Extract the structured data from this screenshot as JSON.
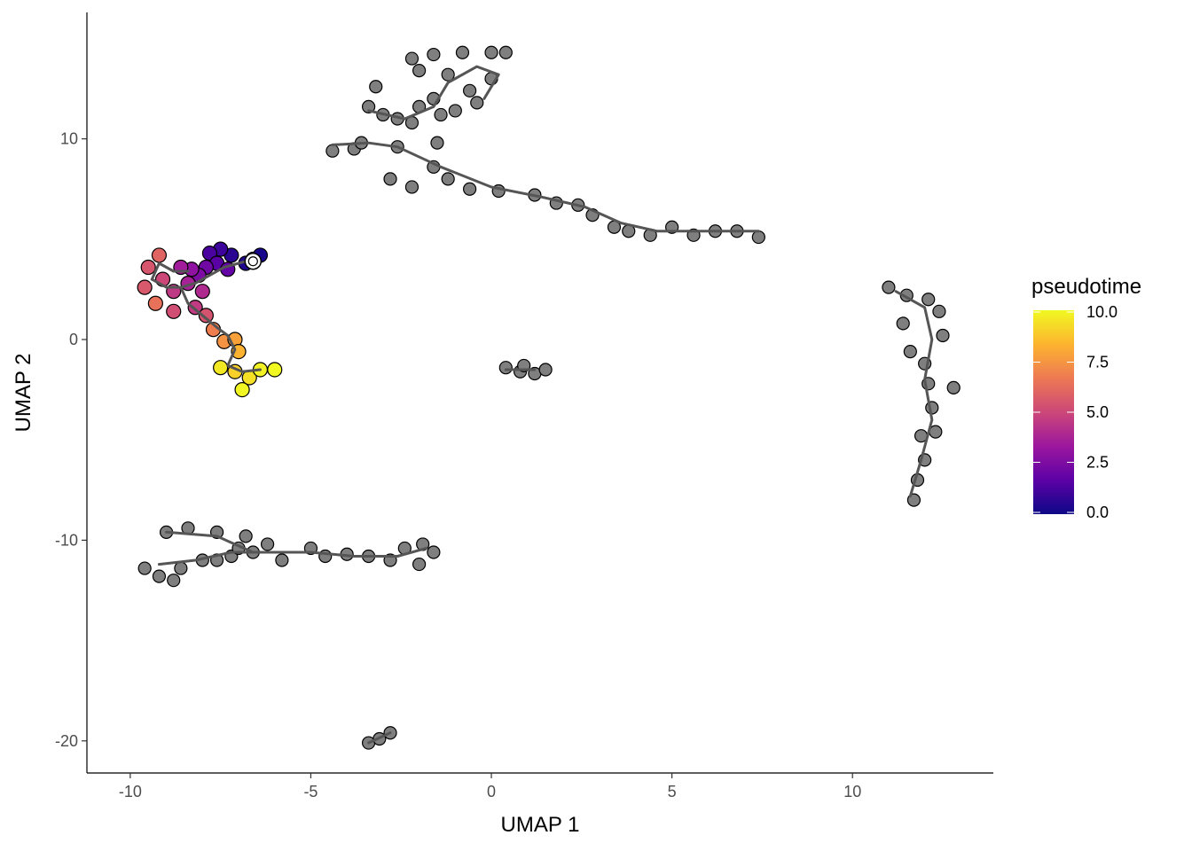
{
  "chart_data": {
    "type": "scatter",
    "title": "",
    "xlabel": "UMAP 1",
    "ylabel": "UMAP 2",
    "xlim": [
      -11.2,
      13.9
    ],
    "ylim": [
      -21.6,
      16.3
    ],
    "x_ticks": [
      -10,
      -5,
      0,
      5,
      10
    ],
    "x_tick_labels": [
      "-10",
      "-5",
      "0",
      "5",
      "10"
    ],
    "y_ticks": [
      -20,
      -10,
      0,
      10
    ],
    "y_tick_labels": [
      "-20",
      "-10",
      "0",
      "10"
    ],
    "grid": false,
    "legend": {
      "title": "pseudotime",
      "placement": "right",
      "colormap": "plasma",
      "range": [
        0,
        10
      ],
      "ticks": [
        0,
        2.5,
        5,
        7.5,
        10
      ],
      "tick_labels": [
        "0.0",
        "2.5",
        "5.0",
        "7.5",
        "10.0"
      ],
      "colors": [
        "#0d0887",
        "#5c01a6",
        "#9c179e",
        "#cc4778",
        "#ed7953",
        "#fdb42f",
        "#f0f921"
      ]
    },
    "colors": {
      "unassigned_points": "#7f7f7f",
      "point_outline": "#000000",
      "trajectory": "#555555",
      "root_marker": "#ffffff"
    },
    "colored_cluster": [
      {
        "x": -6.6,
        "y": 4.0,
        "pseudotime": 0.0
      },
      {
        "x": -6.4,
        "y": 4.2,
        "pseudotime": 0.2
      },
      {
        "x": -6.8,
        "y": 3.8,
        "pseudotime": 0.4
      },
      {
        "x": -7.2,
        "y": 4.2,
        "pseudotime": 0.6
      },
      {
        "x": -7.5,
        "y": 4.5,
        "pseudotime": 1.0
      },
      {
        "x": -7.8,
        "y": 4.3,
        "pseudotime": 1.3
      },
      {
        "x": -7.6,
        "y": 3.8,
        "pseudotime": 1.6
      },
      {
        "x": -7.3,
        "y": 3.5,
        "pseudotime": 1.9
      },
      {
        "x": -7.9,
        "y": 3.6,
        "pseudotime": 2.2
      },
      {
        "x": -8.1,
        "y": 3.2,
        "pseudotime": 2.5
      },
      {
        "x": -8.3,
        "y": 3.5,
        "pseudotime": 3.0
      },
      {
        "x": -8.6,
        "y": 3.6,
        "pseudotime": 3.5
      },
      {
        "x": -8.4,
        "y": 2.8,
        "pseudotime": 3.7
      },
      {
        "x": -8.0,
        "y": 2.4,
        "pseudotime": 4.0
      },
      {
        "x": -8.8,
        "y": 2.4,
        "pseudotime": 4.5
      },
      {
        "x": -9.1,
        "y": 3.0,
        "pseudotime": 5.0
      },
      {
        "x": -9.5,
        "y": 3.6,
        "pseudotime": 5.5
      },
      {
        "x": -9.2,
        "y": 4.2,
        "pseudotime": 6.0
      },
      {
        "x": -9.6,
        "y": 2.6,
        "pseudotime": 5.6
      },
      {
        "x": -9.3,
        "y": 1.8,
        "pseudotime": 6.4
      },
      {
        "x": -8.8,
        "y": 1.4,
        "pseudotime": 5.2
      },
      {
        "x": -8.2,
        "y": 1.6,
        "pseudotime": 4.6
      },
      {
        "x": -7.9,
        "y": 1.2,
        "pseudotime": 5.4
      },
      {
        "x": -7.7,
        "y": 0.5,
        "pseudotime": 6.8
      },
      {
        "x": -7.4,
        "y": -0.1,
        "pseudotime": 7.4
      },
      {
        "x": -7.1,
        "y": 0.0,
        "pseudotime": 7.8
      },
      {
        "x": -7.0,
        "y": -0.6,
        "pseudotime": 8.3
      },
      {
        "x": -7.5,
        "y": -1.4,
        "pseudotime": 9.6
      },
      {
        "x": -7.1,
        "y": -1.6,
        "pseudotime": 9.0
      },
      {
        "x": -6.7,
        "y": -1.9,
        "pseudotime": 9.4
      },
      {
        "x": -6.4,
        "y": -1.5,
        "pseudotime": 9.8
      },
      {
        "x": -6.0,
        "y": -1.5,
        "pseudotime": 10.0
      },
      {
        "x": -6.9,
        "y": -2.5,
        "pseudotime": 9.9
      }
    ],
    "gray_clusters": [
      {
        "name": "top-right-cluster",
        "points": [
          [
            -4.4,
            9.4
          ],
          [
            -3.8,
            9.5
          ],
          [
            -3.6,
            9.8
          ],
          [
            -3.4,
            11.6
          ],
          [
            -3.2,
            12.6
          ],
          [
            -3.0,
            11.2
          ],
          [
            -2.6,
            11.0
          ],
          [
            -2.2,
            10.8
          ],
          [
            -2.0,
            11.6
          ],
          [
            -1.6,
            12.0
          ],
          [
            -2.6,
            9.6
          ],
          [
            -2.8,
            8.0
          ],
          [
            -2.2,
            7.6
          ],
          [
            -1.6,
            8.6
          ],
          [
            -1.5,
            9.8
          ],
          [
            -1.4,
            11.2
          ],
          [
            -1.0,
            11.4
          ],
          [
            -0.6,
            12.4
          ],
          [
            -1.2,
            13.2
          ],
          [
            -2.0,
            13.4
          ],
          [
            -2.2,
            14.0
          ],
          [
            -1.6,
            14.2
          ],
          [
            -0.8,
            14.3
          ],
          [
            0.0,
            14.3
          ],
          [
            0.4,
            14.3
          ],
          [
            0.0,
            13.0
          ],
          [
            -0.4,
            11.8
          ],
          [
            -1.2,
            8.0
          ],
          [
            -0.6,
            7.5
          ],
          [
            0.2,
            7.4
          ],
          [
            1.2,
            7.2
          ],
          [
            1.8,
            6.8
          ],
          [
            2.4,
            6.7
          ],
          [
            2.8,
            6.2
          ],
          [
            3.4,
            5.6
          ],
          [
            3.8,
            5.4
          ],
          [
            4.4,
            5.2
          ],
          [
            5.0,
            5.6
          ],
          [
            5.6,
            5.2
          ],
          [
            6.2,
            5.4
          ],
          [
            6.8,
            5.4
          ],
          [
            7.4,
            5.1
          ]
        ]
      },
      {
        "name": "right-vertical-cluster",
        "points": [
          [
            11.0,
            2.6
          ],
          [
            11.5,
            2.2
          ],
          [
            12.1,
            2.0
          ],
          [
            12.4,
            1.4
          ],
          [
            12.5,
            0.2
          ],
          [
            11.4,
            0.8
          ],
          [
            11.6,
            -0.6
          ],
          [
            12.0,
            -1.2
          ],
          [
            12.1,
            -2.2
          ],
          [
            12.8,
            -2.4
          ],
          [
            12.2,
            -3.4
          ],
          [
            12.3,
            -4.6
          ],
          [
            11.9,
            -4.8
          ],
          [
            12.0,
            -6.0
          ],
          [
            11.8,
            -7.0
          ],
          [
            11.7,
            -8.0
          ]
        ]
      },
      {
        "name": "center-small-cluster",
        "points": [
          [
            0.4,
            -1.4
          ],
          [
            0.8,
            -1.6
          ],
          [
            1.2,
            -1.7
          ],
          [
            1.5,
            -1.5
          ],
          [
            0.9,
            -1.3
          ]
        ]
      },
      {
        "name": "bottom-left-cluster",
        "points": [
          [
            -9.6,
            -11.4
          ],
          [
            -9.2,
            -11.8
          ],
          [
            -8.8,
            -12.0
          ],
          [
            -8.6,
            -11.4
          ],
          [
            -8.0,
            -11.0
          ],
          [
            -7.6,
            -11.0
          ],
          [
            -7.2,
            -10.8
          ],
          [
            -7.0,
            -10.4
          ],
          [
            -6.6,
            -10.6
          ],
          [
            -9.0,
            -9.6
          ],
          [
            -8.4,
            -9.4
          ],
          [
            -7.6,
            -9.6
          ],
          [
            -6.8,
            -9.8
          ],
          [
            -6.2,
            -10.2
          ],
          [
            -5.8,
            -11.0
          ],
          [
            -5.0,
            -10.4
          ],
          [
            -4.6,
            -10.8
          ],
          [
            -4.0,
            -10.7
          ],
          [
            -3.4,
            -10.8
          ],
          [
            -2.8,
            -11.0
          ],
          [
            -2.4,
            -10.4
          ],
          [
            -1.9,
            -10.2
          ],
          [
            -1.6,
            -10.6
          ],
          [
            -2.0,
            -11.2
          ]
        ]
      },
      {
        "name": "bottom-tiny-cluster",
        "points": [
          [
            -3.4,
            -20.1
          ],
          [
            -3.1,
            -19.9
          ],
          [
            -2.8,
            -19.6
          ]
        ]
      }
    ],
    "trajectory_segments": [
      [
        [
          -9.4,
          3.0
        ],
        [
          -9.0,
          2.6
        ],
        [
          -8.6,
          2.6
        ],
        [
          -8.2,
          2.8
        ],
        [
          -7.8,
          3.2
        ],
        [
          -7.4,
          3.6
        ],
        [
          -7.0,
          3.8
        ],
        [
          -6.6,
          4.0
        ]
      ],
      [
        [
          -8.6,
          2.6
        ],
        [
          -8.4,
          1.8
        ],
        [
          -8.0,
          1.2
        ],
        [
          -7.6,
          0.6
        ],
        [
          -7.3,
          0.2
        ],
        [
          -7.1,
          -0.5
        ],
        [
          -7.3,
          -1.3
        ],
        [
          -6.9,
          -1.6
        ],
        [
          -6.4,
          -1.5
        ]
      ],
      [
        [
          -9.4,
          3.0
        ],
        [
          -9.2,
          3.8
        ],
        [
          -8.8,
          3.4
        ],
        [
          -8.4,
          3.4
        ]
      ],
      [
        [
          -4.4,
          9.7
        ],
        [
          -3.4,
          9.8
        ],
        [
          -2.6,
          9.6
        ],
        [
          -1.4,
          8.6
        ],
        [
          0.0,
          7.6
        ],
        [
          1.4,
          7.1
        ],
        [
          2.6,
          6.6
        ],
        [
          3.6,
          5.8
        ],
        [
          4.6,
          5.4
        ],
        [
          5.6,
          5.4
        ],
        [
          6.8,
          5.4
        ],
        [
          7.4,
          5.4
        ]
      ],
      [
        [
          -3.4,
          11.4
        ],
        [
          -2.4,
          11.0
        ],
        [
          -1.6,
          11.6
        ],
        [
          -1.2,
          12.8
        ],
        [
          -0.4,
          13.6
        ],
        [
          0.2,
          13.2
        ],
        [
          -0.2,
          12.0
        ]
      ],
      [
        [
          11.2,
          2.4
        ],
        [
          12.0,
          1.6
        ],
        [
          12.2,
          0.0
        ],
        [
          12.0,
          -2.0
        ],
        [
          12.2,
          -4.0
        ],
        [
          11.9,
          -6.0
        ],
        [
          11.6,
          -7.8
        ]
      ],
      [
        [
          -9.2,
          -11.2
        ],
        [
          -8.2,
          -11.0
        ],
        [
          -7.2,
          -10.6
        ],
        [
          -6.2,
          -10.6
        ],
        [
          -5.0,
          -10.6
        ],
        [
          -3.8,
          -10.8
        ],
        [
          -2.6,
          -10.8
        ],
        [
          -1.8,
          -10.4
        ]
      ],
      [
        [
          -9.0,
          -9.6
        ],
        [
          -7.6,
          -9.8
        ],
        [
          -6.6,
          -10.6
        ]
      ],
      [
        [
          0.4,
          -1.5
        ],
        [
          1.2,
          -1.5
        ]
      ],
      [
        [
          -3.4,
          -20.1
        ],
        [
          -2.8,
          -19.6
        ]
      ]
    ],
    "root_marker": {
      "x": -6.6,
      "y": 3.9
    }
  }
}
